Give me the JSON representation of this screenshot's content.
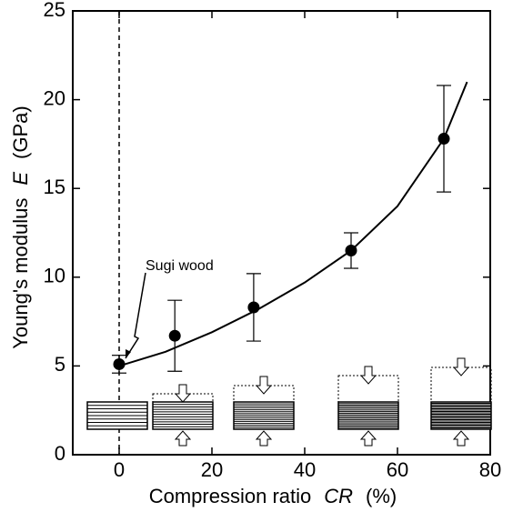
{
  "chart_data": {
    "type": "scatter",
    "x_label": [
      "Compression ratio",
      "CR",
      "(%)"
    ],
    "y_label": [
      "Young's modulus",
      "E",
      "(GPa)"
    ],
    "annotation": "Sugi wood",
    "xlim": [
      -10,
      80
    ],
    "xticks": [
      0,
      20,
      40,
      60,
      80
    ],
    "ylim": [
      0,
      25
    ],
    "yticks": [
      0,
      5,
      10,
      15,
      20,
      25
    ],
    "series": [
      {
        "x": [
          0,
          12,
          29,
          50,
          70
        ],
        "values": [
          5.1,
          6.7,
          8.3,
          11.5,
          17.8
        ],
        "errors": [
          0.5,
          2.0,
          1.9,
          1.0,
          3.0
        ],
        "color": "#000000"
      },
      {
        "x": [
          0,
          10,
          20,
          30,
          40,
          50,
          60,
          70,
          75
        ],
        "values": [
          5.0,
          5.8,
          6.9,
          8.2,
          9.7,
          11.5,
          14.0,
          17.8,
          21.0
        ],
        "color": "#000000"
      }
    ]
  }
}
